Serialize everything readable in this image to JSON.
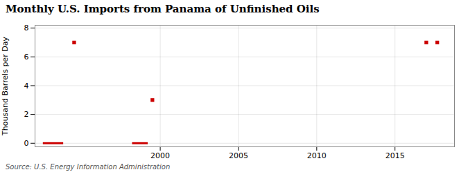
{
  "chart_data": {
    "type": "scatter",
    "title": "Monthly U.S. Imports from Panama of Unfinished Oils",
    "ylabel": "Thousand Barrels per Day",
    "source": "Source: U.S. Energy Information Administration",
    "color": "#cc0000",
    "xlim": [
      1992,
      2018.8
    ],
    "ylim": [
      -0.25,
      8.2
    ],
    "xticks": [
      2000,
      2005,
      2010,
      2015
    ],
    "yticks": [
      0,
      2,
      4,
      6,
      8
    ],
    "grid": true,
    "series": [
      {
        "type": "line",
        "segments": [
          {
            "x_start": 1992.5,
            "x_end": 1993.8,
            "y": 0.0
          },
          {
            "x_start": 1998.2,
            "x_end": 1999.2,
            "y": 0.0
          }
        ]
      },
      {
        "type": "scatter",
        "marker": "square",
        "x": [
          1994.5,
          1999.5,
          2017.0,
          2017.7
        ],
        "values": [
          7.0,
          3.0,
          7.0,
          7.0
        ]
      }
    ]
  }
}
